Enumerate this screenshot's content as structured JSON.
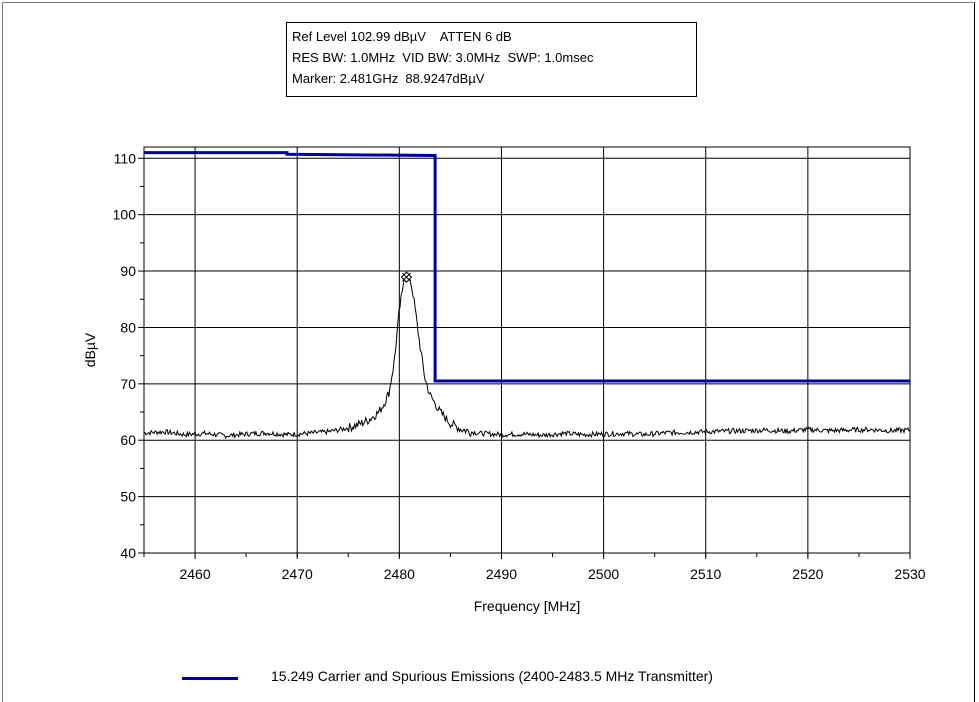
{
  "header": {
    "line1": "Ref Level 102.99 dBµV    ATTEN 6 dB",
    "line2": "RES BW: 1.0MHz  VID BW: 3.0MHz  SWP: 1.0msec",
    "line3": "Marker: 2.481GHz  88.9247dBµV"
  },
  "legend": {
    "label": "15.249 Carrier and Spurious Emissions (2400-2483.5 MHz Transmitter)"
  },
  "colors": {
    "limit_line": "#0000a0",
    "trace": "#000000",
    "grid": "#000000"
  },
  "chart_data": {
    "type": "line",
    "xlabel": "Frequency [MHz]",
    "ylabel": "dBµV",
    "xlim": [
      2455,
      2530
    ],
    "ylim": [
      40,
      112
    ],
    "x_ticks": [
      2460,
      2470,
      2480,
      2490,
      2500,
      2510,
      2520,
      2530
    ],
    "y_ticks": [
      40,
      50,
      60,
      70,
      80,
      90,
      100,
      110
    ],
    "x_tick_labels": [
      "2460",
      "2470",
      "2480",
      "2490",
      "2500",
      "2510",
      "2520",
      "2530"
    ],
    "y_tick_labels": [
      "40",
      "50",
      "60",
      "70",
      "80",
      "90",
      "100",
      "110"
    ],
    "grid": true,
    "legend_position": "bottom",
    "series": [
      {
        "name": "15.249 Carrier and Spurious Emissions (2400-2483.5 MHz Transmitter)",
        "style": "step",
        "x": [
          2455,
          2469,
          2469,
          2483.5,
          2483.5,
          2530
        ],
        "y": [
          111,
          111,
          110.7,
          110.5,
          70.5,
          70.5
        ]
      },
      {
        "style": "trace",
        "x": [
          2455,
          2457,
          2459,
          2461,
          2463,
          2465,
          2467,
          2469,
          2471,
          2473,
          2474,
          2475,
          2476,
          2477,
          2478,
          2478.5,
          2479,
          2479.5,
          2480,
          2480.5,
          2481,
          2481.5,
          2482,
          2482.5,
          2483,
          2483.5,
          2484,
          2484.5,
          2485,
          2485.5,
          2486,
          2487,
          2488,
          2490,
          2492,
          2494,
          2496,
          2498,
          2500,
          2502,
          2504,
          2506,
          2508,
          2510,
          2512,
          2514,
          2516,
          2518,
          2520,
          2522,
          2524,
          2526,
          2528,
          2530
        ],
        "y": [
          61.3,
          61.5,
          61.0,
          61.2,
          60.8,
          61.1,
          61.3,
          61.0,
          61.2,
          61.5,
          61.8,
          62.2,
          62.8,
          63.6,
          65.0,
          66.5,
          68.5,
          74.0,
          83.0,
          88.9,
          89.0,
          84.0,
          77.0,
          71.0,
          68.0,
          66.5,
          65.0,
          64.0,
          63.0,
          62.5,
          62.0,
          61.5,
          61.2,
          61.0,
          61.1,
          60.9,
          61.2,
          61.0,
          61.1,
          61.2,
          61.0,
          61.3,
          61.4,
          61.5,
          61.6,
          61.7,
          61.8,
          61.6,
          61.9,
          61.7,
          61.8,
          61.9,
          61.7,
          61.8
        ]
      }
    ],
    "marker": {
      "x": 2480.7,
      "y": 88.9247,
      "label": "Marker: 2.481GHz  88.9247dBµV"
    }
  }
}
